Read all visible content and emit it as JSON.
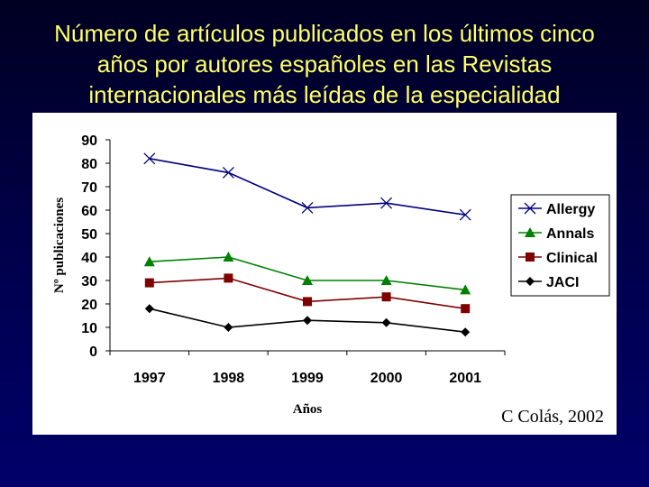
{
  "slide": {
    "title_lines": [
      "Número de artículos publicados en los últimos cinco",
      "años por autores españoles en las Revistas",
      "internacionales más leídas de la especialidad"
    ],
    "title_color": "#ffff66",
    "credit": "C Colás, 2002"
  },
  "chart_data": {
    "type": "line",
    "title": "",
    "xlabel": "Años",
    "ylabel": "Nº publicaciones",
    "categories": [
      "1997",
      "1998",
      "1999",
      "2000",
      "2001"
    ],
    "ylim": [
      0,
      90
    ],
    "yticks": [
      0,
      10,
      20,
      30,
      40,
      50,
      60,
      70,
      80,
      90
    ],
    "grid": false,
    "legend_position": "right",
    "series": [
      {
        "name": "Allergy",
        "values": [
          82,
          76,
          61,
          63,
          58
        ],
        "color": "#000080",
        "marker": "x"
      },
      {
        "name": "Annals",
        "values": [
          38,
          40,
          30,
          30,
          26
        ],
        "color": "#008000",
        "marker": "triangle"
      },
      {
        "name": "Clinical",
        "values": [
          29,
          31,
          21,
          23,
          18
        ],
        "color": "#800000",
        "marker": "square"
      },
      {
        "name": "JACI",
        "values": [
          18,
          10,
          13,
          12,
          8
        ],
        "color": "#000000",
        "marker": "diamond"
      }
    ]
  }
}
